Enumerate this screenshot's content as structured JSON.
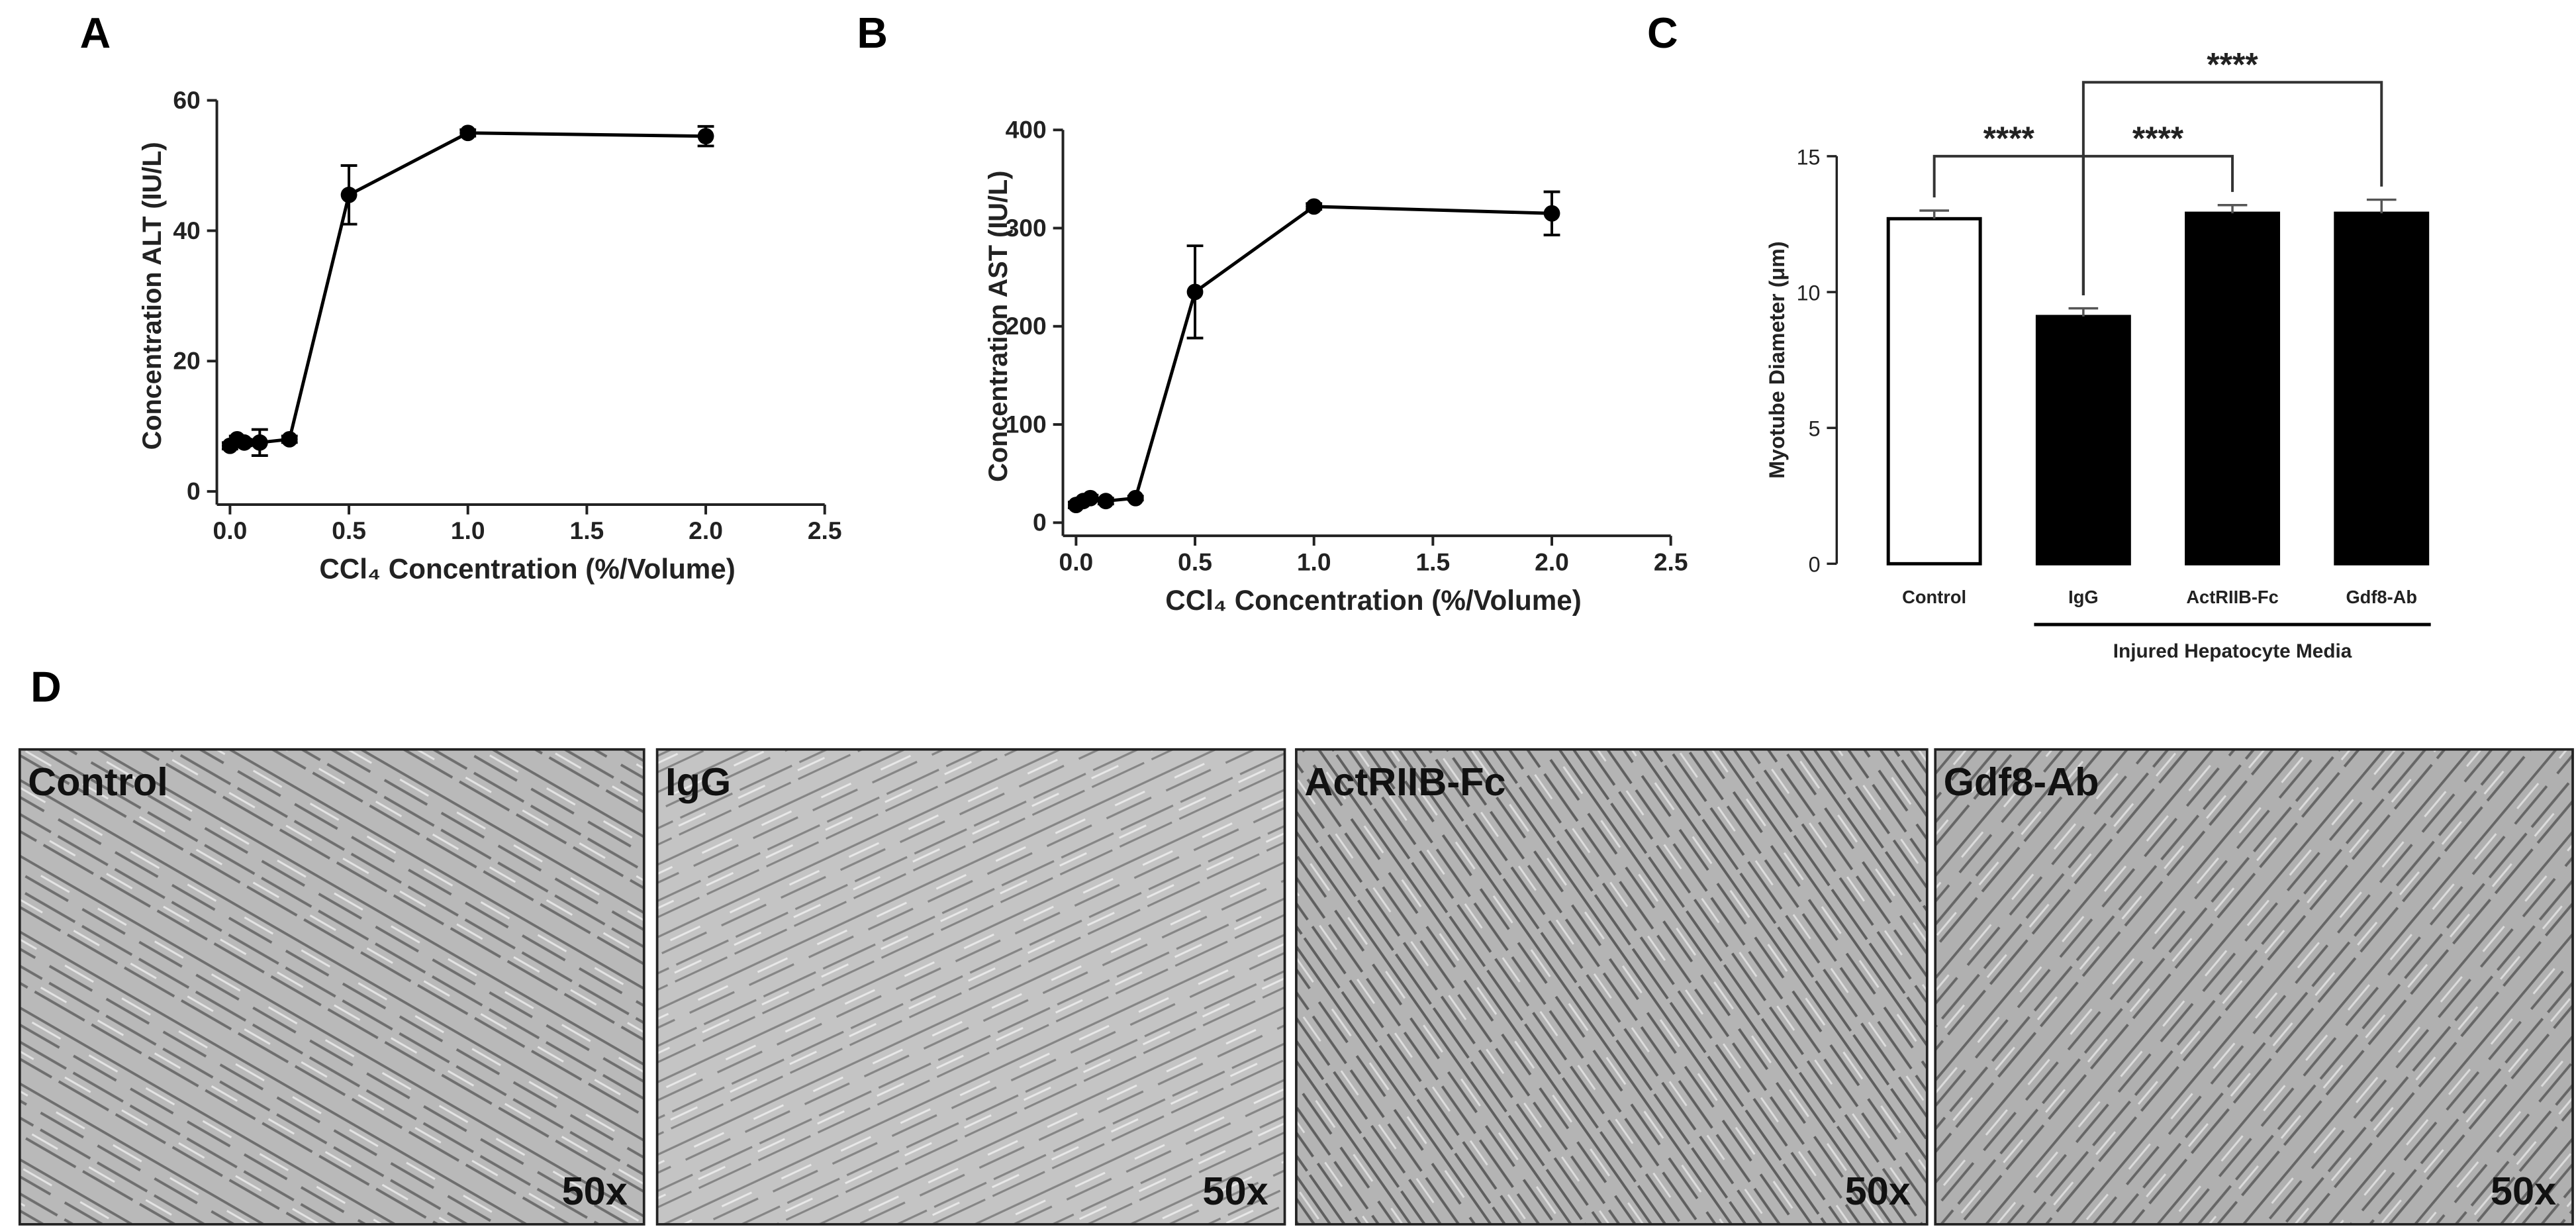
{
  "chart_data": [
    {
      "type": "line",
      "panel_label": "A",
      "xlabel": "CCl₄ Concentration  (%/Volume)",
      "ylabel": "Concentration ALT (IU/L)",
      "x": [
        0,
        0.03,
        0.06,
        0.125,
        0.25,
        0.5,
        1,
        2
      ],
      "values": [
        7,
        8,
        7.5,
        7.5,
        8,
        45.5,
        55,
        54.5
      ],
      "errors": [
        0.5,
        0.5,
        0.5,
        2,
        0.5,
        4.5,
        0.5,
        1.5
      ],
      "color": "#000000",
      "xlim": [
        0,
        2.5
      ],
      "xticks": [
        {
          "value": 0,
          "label": "0.0"
        },
        0.5,
        {
          "value": 1,
          "label": "1.0"
        },
        1.5,
        {
          "value": 2,
          "label": "2.0"
        },
        2.5
      ],
      "ylim": [
        0,
        60
      ],
      "yticks": [
        0,
        20,
        40,
        60
      ]
    },
    {
      "type": "line",
      "panel_label": "B",
      "xlabel": "CCl₄ Concentration  (%/Volume)",
      "ylabel": "Concentration AST (IU/L)",
      "x": [
        0,
        0.03,
        0.06,
        0.125,
        0.25,
        0.5,
        1,
        2
      ],
      "values": [
        18,
        22,
        25,
        22,
        25,
        235,
        322,
        315
      ],
      "errors": [
        3,
        3,
        3,
        3,
        2,
        47,
        3,
        22
      ],
      "color": "#000000",
      "xlim": [
        0,
        2.5
      ],
      "xticks": [
        {
          "value": 0,
          "label": "0.0"
        },
        0.5,
        {
          "value": 1,
          "label": "1.0"
        },
        1.5,
        {
          "value": 2,
          "label": "2.0"
        },
        2.5
      ],
      "ylim": [
        0,
        400
      ],
      "yticks": [
        0,
        100,
        200,
        300,
        400
      ]
    },
    {
      "type": "bar",
      "panel_label": "C",
      "ylabel": "Myotube Diameter (μm)",
      "categories": [
        "Control",
        "IgG",
        "ActRIIB-Fc",
        "Gdf8-Ab"
      ],
      "values": [
        12.7,
        9.1,
        12.9,
        12.9
      ],
      "errors": [
        0.3,
        0.3,
        0.3,
        0.5
      ],
      "colors": [
        "#ffffff",
        "#000000",
        "#000000",
        "#000000"
      ],
      "ylim": [
        0,
        15
      ],
      "yticks": [
        0,
        5,
        10,
        15
      ],
      "group": {
        "label": "Injured Hepatocyte Media",
        "from": "IgG",
        "to": "Gdf8-Ab"
      },
      "comparisons": [
        {
          "from": "Control",
          "to": "IgG",
          "label": "****"
        },
        {
          "from": "IgG",
          "to": "ActRIIB-Fc",
          "label": "****"
        },
        {
          "from": "IgG",
          "to": "Gdf8-Ab",
          "label": "****"
        }
      ]
    }
  ],
  "micrographs": {
    "panel_label": "D",
    "images": [
      {
        "label": "Control",
        "magnification": "50x"
      },
      {
        "label": "IgG",
        "magnification": "50x"
      },
      {
        "label": "ActRIIB-Fc",
        "magnification": "50x"
      },
      {
        "label": "Gdf8-Ab",
        "magnification": "50x"
      }
    ]
  }
}
